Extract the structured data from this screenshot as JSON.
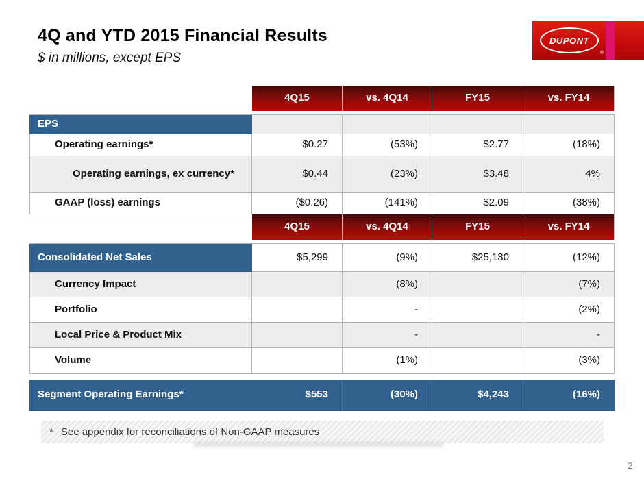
{
  "slide": {
    "title": "4Q and YTD 2015 Financial Results",
    "subtitle": "$ in millions, except EPS",
    "footnote_marker": "*",
    "footnote_text": "See appendix for reconciliations of Non-GAAP measures",
    "page_number": "2"
  },
  "logo": {
    "text": "DUPONT",
    "registered": "®"
  },
  "colors": {
    "header_red": "#b30505",
    "header_red_dark": "#450606",
    "section_blue": "#31618f",
    "row_gray": "#ececec",
    "logo_red": "#d41414",
    "logo_stripe_pink": "#dd1268"
  },
  "table1": {
    "section": "EPS",
    "columns": [
      "4Q15",
      "vs. 4Q14",
      "FY15",
      "vs. FY14"
    ],
    "rows": [
      {
        "label": "Operating earnings*",
        "values": [
          "$0.27",
          "(53%)",
          "$2.77",
          "(18%)"
        ]
      },
      {
        "label": "Operating earnings, ex currency*",
        "values": [
          "$0.44",
          "(23%)",
          "$3.48",
          "4%"
        ]
      },
      {
        "label": "GAAP (loss) earnings",
        "values": [
          "($0.26)",
          "(141%)",
          "$2.09",
          "(38%)"
        ]
      }
    ]
  },
  "table2": {
    "columns": [
      "4Q15",
      "vs. 4Q14",
      "FY15",
      "vs. FY14"
    ],
    "rows": [
      {
        "label": "Consolidated Net Sales",
        "values": [
          "$5,299",
          "(9%)",
          "$25,130",
          "(12%)"
        ]
      },
      {
        "label": "Currency Impact",
        "values": [
          "",
          "(8%)",
          "",
          "(7%)"
        ]
      },
      {
        "label": "Portfolio",
        "values": [
          "",
          "-",
          "",
          "(2%)"
        ]
      },
      {
        "label": "Local Price & Product Mix",
        "values": [
          "",
          "-",
          "",
          "-"
        ]
      },
      {
        "label": "Volume",
        "values": [
          "",
          "(1%)",
          "",
          "(3%)"
        ]
      }
    ],
    "total_row": {
      "label": "Segment Operating Earnings*",
      "values": [
        "$553",
        "(30%)",
        "$4,243",
        "(16%)"
      ]
    }
  }
}
